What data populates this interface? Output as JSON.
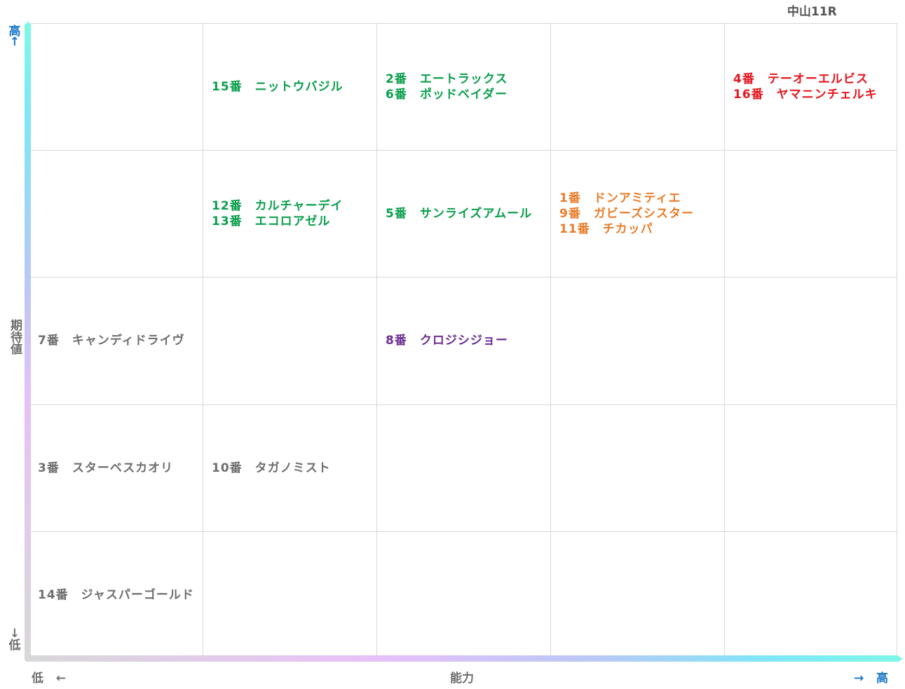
{
  "race_title": "中山11R",
  "axes": {
    "y": {
      "high_label": "高",
      "high_arrow": "↑",
      "name": "期待値",
      "low_arrow": "↓",
      "low_label": "低"
    },
    "x": {
      "low_label": "低",
      "low_arrow": "←",
      "name": "能力",
      "high_arrow": "→",
      "high_label": "高"
    }
  },
  "colors": {
    "green": "#0a9e4c",
    "red": "#e5161e",
    "orange": "#ea7d2b",
    "purple": "#6d2e93",
    "gray": "#6e6e6e",
    "axis_accent": "#1a77c9"
  },
  "grid": {
    "rows": [
      [
        [],
        [
          {
            "num": "15番",
            "name": "ニットウバジル",
            "color": "green"
          }
        ],
        [
          {
            "num": "2番",
            "name": "エートラックス",
            "color": "green"
          },
          {
            "num": "6番",
            "name": "ポッドベイダー",
            "color": "green"
          }
        ],
        [],
        [
          {
            "num": "4番",
            "name": "テーオーエルビス",
            "color": "red"
          },
          {
            "num": "16番",
            "name": "ヤマニンチェルキ",
            "color": "red"
          }
        ]
      ],
      [
        [],
        [
          {
            "num": "12番",
            "name": "カルチャーデイ",
            "color": "green"
          },
          {
            "num": "13番",
            "name": "エコロアゼル",
            "color": "green"
          }
        ],
        [
          {
            "num": "5番",
            "name": "サンライズアムール",
            "color": "green"
          }
        ],
        [
          {
            "num": "1番",
            "name": "ドンアミティエ",
            "color": "orange"
          },
          {
            "num": "9番",
            "name": "ガビーズシスター",
            "color": "orange"
          },
          {
            "num": "11番",
            "name": "チカッパ",
            "color": "orange"
          }
        ],
        []
      ],
      [
        [
          {
            "num": "7番",
            "name": "キャンディドライヴ",
            "color": "gray"
          }
        ],
        [],
        [
          {
            "num": "8番",
            "name": "クロジシジョー",
            "color": "purple"
          }
        ],
        [],
        []
      ],
      [
        [
          {
            "num": "3番",
            "name": "スターベスカオリ",
            "color": "gray"
          }
        ],
        [
          {
            "num": "10番",
            "name": "タガノミスト",
            "color": "gray"
          }
        ],
        [],
        [],
        []
      ],
      [
        [
          {
            "num": "14番",
            "name": "ジャスパーゴールド",
            "color": "gray"
          }
        ],
        [],
        [],
        [],
        []
      ]
    ]
  }
}
